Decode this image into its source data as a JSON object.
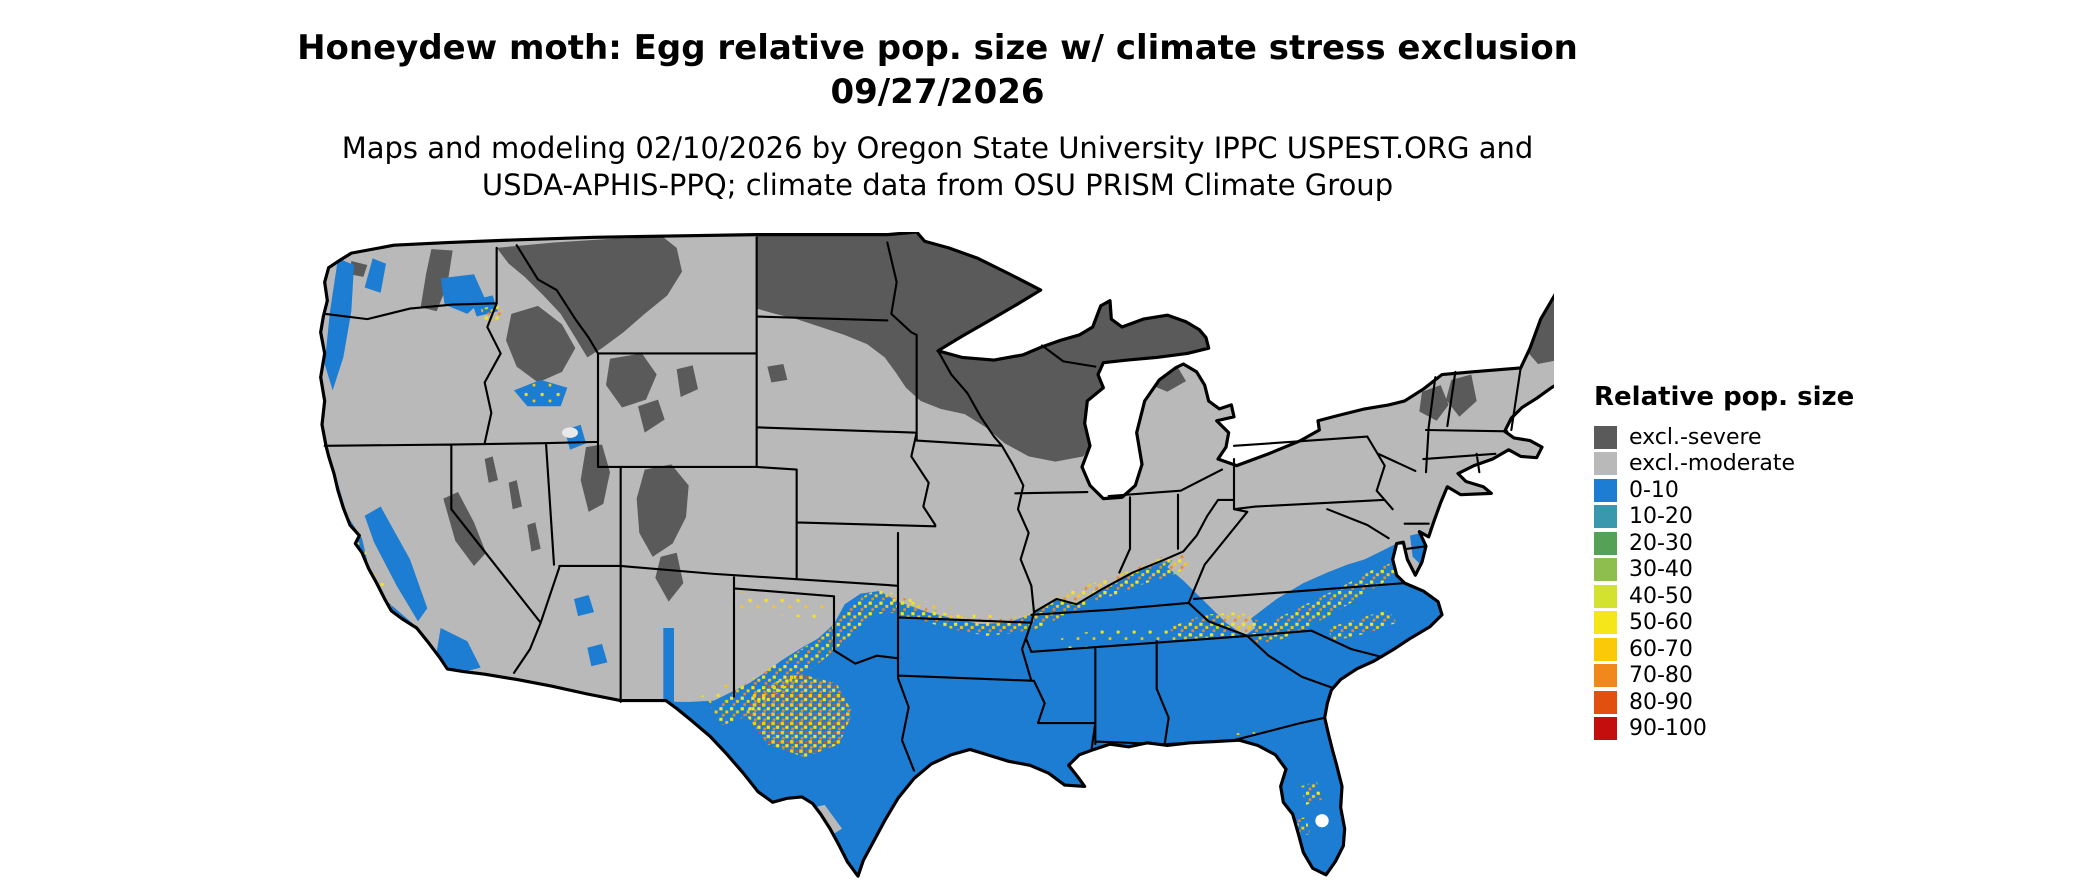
{
  "header": {
    "title_line1": "Honeydew moth: Egg relative pop. size w/ climate stress exclusion",
    "title_line2": "09/27/2026",
    "subtitle_line1": "Maps and modeling 02/10/2026 by Oregon State University IPPC USPEST.ORG and",
    "subtitle_line2": "USDA-APHIS-PPQ; climate data from OSU PRISM Climate Group"
  },
  "legend": {
    "title": "Relative pop. size",
    "items": [
      {
        "label": "excl.-severe",
        "color": "#5a5a5a"
      },
      {
        "label": "excl.-moderate",
        "color": "#b9b9b9"
      },
      {
        "label": "0-10",
        "color": "#1d7dd2"
      },
      {
        "label": "10-20",
        "color": "#3a98ae"
      },
      {
        "label": "20-30",
        "color": "#55a257"
      },
      {
        "label": "30-40",
        "color": "#8ebf4e"
      },
      {
        "label": "40-50",
        "color": "#d3e12f"
      },
      {
        "label": "50-60",
        "color": "#f5e61a"
      },
      {
        "label": "60-70",
        "color": "#fbc908"
      },
      {
        "label": "70-80",
        "color": "#f1881c"
      },
      {
        "label": "80-90",
        "color": "#e2500f"
      },
      {
        "label": "90-100",
        "color": "#c40d0d"
      }
    ]
  },
  "palette": {
    "excl_severe": "#5a5a5a",
    "excl_moderate": "#b9b9b9",
    "pop_low": "#1d7dd2",
    "speckle_yellow": "#f5e61a",
    "speckle_gold": "#fbc908",
    "speckle_orange": "#f1881c",
    "speckle_red": "#e2500f",
    "border": "#000000",
    "background": "#ffffff"
  },
  "map": {
    "region": "Continental United States",
    "kind": "raster choropleth with state boundaries"
  }
}
